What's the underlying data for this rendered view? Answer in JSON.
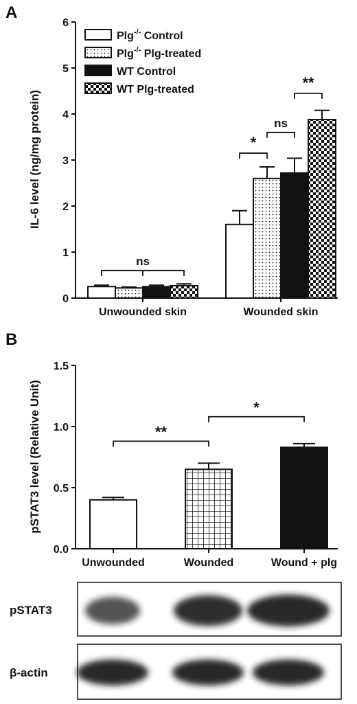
{
  "colors": {
    "ink": "#111111",
    "white": "#ffffff",
    "band": "#1a1a1a"
  },
  "chart_data": [
    {
      "panel_label": "A",
      "type": "bar",
      "ylabel": "IL-6 level (ng/mg protein)",
      "ylim": [
        0,
        6
      ],
      "yticks": [
        "0",
        "1",
        "2",
        "3",
        "4",
        "5",
        "6"
      ],
      "categories": [
        "Unwounded skin",
        "Wounded skin"
      ],
      "legend": [
        {
          "base": "Plg",
          "sup": "-/-",
          "rest": " Control"
        },
        {
          "base": "Plg",
          "sup": "-/-",
          "rest": " Plg-treated"
        },
        {
          "base": "WT Control",
          "sup": "",
          "rest": ""
        },
        {
          "base": "WT Plg-treated",
          "sup": "",
          "rest": ""
        }
      ],
      "series": [
        {
          "name": "Plg-/- Control",
          "pattern": "white",
          "values": [
            0.25,
            1.6
          ],
          "errors": [
            0.03,
            0.3
          ]
        },
        {
          "name": "Plg-/- Plg-treated",
          "pattern": "dots",
          "values": [
            0.22,
            2.6
          ],
          "errors": [
            0.02,
            0.25
          ]
        },
        {
          "name": "WT Control",
          "pattern": "black",
          "values": [
            0.25,
            2.72
          ],
          "errors": [
            0.03,
            0.32
          ]
        },
        {
          "name": "WT Plg-treated",
          "pattern": "checker",
          "values": [
            0.27,
            3.88
          ],
          "errors": [
            0.04,
            0.2
          ]
        }
      ],
      "annotations": [
        {
          "text": "ns",
          "group": 0,
          "from": 0,
          "to": 3,
          "level": 0.6
        },
        {
          "text": "*",
          "group": 1,
          "from": 0,
          "to": 1,
          "level": 3.15
        },
        {
          "text": "ns",
          "group": 1,
          "from": 1,
          "to": 2,
          "level": 3.6
        },
        {
          "text": "**",
          "group": 1,
          "from": 2,
          "to": 3,
          "level": 4.45
        }
      ]
    },
    {
      "panel_label": "B",
      "type": "bar",
      "ylabel": "pSTAT3 level (Relative Unit)",
      "ylim": [
        0,
        1.5
      ],
      "yticks": [
        "0.0",
        "0.5",
        "1.0",
        "1.5"
      ],
      "categories": [
        "Unwounded",
        "Wounded",
        "Wound + plg"
      ],
      "values": [
        0.4,
        0.65,
        0.83
      ],
      "errors": [
        0.02,
        0.05,
        0.03
      ],
      "patterns": [
        "white",
        "grid",
        "black"
      ],
      "annotations": [
        {
          "text": "**",
          "from": 0,
          "to": 1,
          "level": 0.88
        },
        {
          "text": "*",
          "from": 1,
          "to": 2,
          "level": 1.08
        }
      ]
    }
  ],
  "blot": {
    "rows": [
      {
        "label": "pSTAT3",
        "intensities": [
          0.75,
          0.9,
          0.95
        ]
      },
      {
        "label": "β-actin",
        "intensities": [
          0.95,
          0.95,
          0.95
        ]
      }
    ]
  }
}
